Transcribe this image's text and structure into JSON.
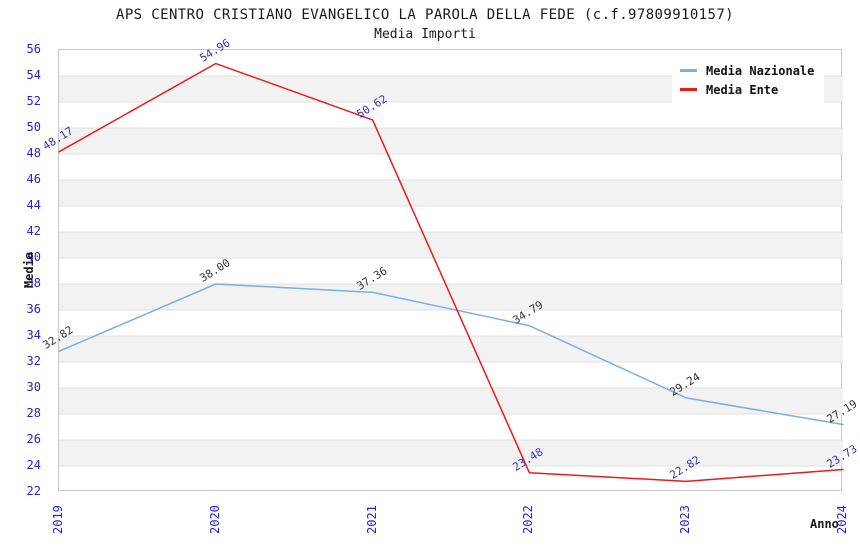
{
  "title": "APS CENTRO CRISTIANO EVANGELICO LA PAROLA DELLA FEDE (c.f.97809910157)",
  "subtitle": "Media Importi",
  "chart_data": {
    "type": "line",
    "title": "APS CENTRO CRISTIANO EVANGELICO LA PAROLA DELLA FEDE (c.f.97809910157)",
    "subtitle": "Media Importi",
    "xlabel": "Anno",
    "ylabel": "Media",
    "x": [
      "2019",
      "2020",
      "2021",
      "2022",
      "2023",
      "2024"
    ],
    "series": [
      {
        "name": "Media Nazionale",
        "line_color": "#79afe5",
        "label_color": "#333333",
        "values": [
          32.82,
          38.0,
          37.36,
          34.79,
          29.24,
          27.19
        ]
      },
      {
        "name": "Media Ente",
        "line_color": "#ee1a1a",
        "label_color": "#3434b0",
        "values": [
          48.17,
          54.96,
          50.62,
          23.48,
          22.82,
          23.73
        ]
      }
    ],
    "ylim": [
      22,
      56
    ],
    "ytick_step": 2,
    "tick_color": "#2222dd",
    "band_fill": "#f2f2f2",
    "gridline_color": "#e0e0e0",
    "grid": "horizontal",
    "legend_position": "top-right"
  }
}
